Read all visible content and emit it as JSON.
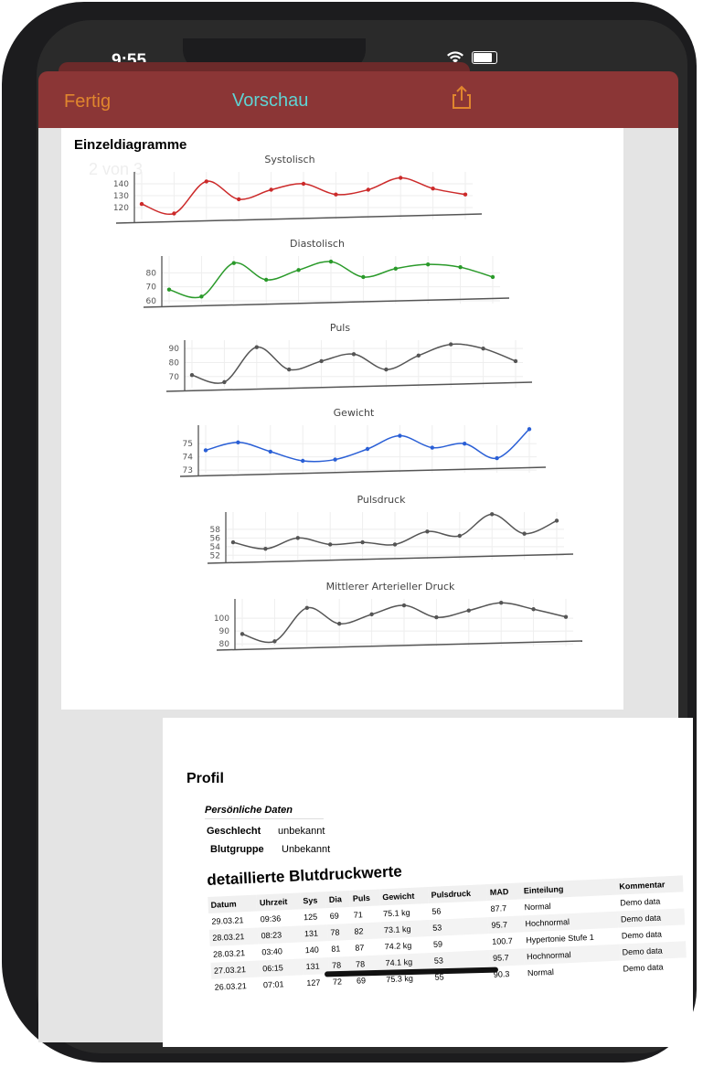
{
  "status_bar": {
    "time": "9:55",
    "wifi_icon": "wifi-icon",
    "battery_icon": "battery-icon"
  },
  "navbar": {
    "done_label": "Fertig",
    "title": "Vorschau",
    "share_icon": "share-icon",
    "colors": {
      "bar": "#8b3636",
      "done": "#e0862e",
      "title": "#5fd3d3"
    }
  },
  "page1": {
    "section_title": "Einzeldiagramme",
    "page_indicator": "2 von 3"
  },
  "chart_data": [
    {
      "type": "line",
      "title": "Systolisch",
      "color": "#cc2a2a",
      "yticks": [
        "120",
        "130",
        "140"
      ],
      "ylim": [
        110,
        150
      ],
      "values": [
        123,
        115,
        142,
        127,
        135,
        140,
        131,
        135,
        145,
        136,
        131
      ]
    },
    {
      "type": "line",
      "title": "Diastolisch",
      "color": "#2a9a2a",
      "yticks": [
        "60",
        "70",
        "80"
      ],
      "ylim": [
        58,
        92
      ],
      "values": [
        68,
        63,
        87,
        75,
        82,
        88,
        77,
        83,
        86,
        84,
        77
      ]
    },
    {
      "type": "line",
      "title": "Puls",
      "color": "#555555",
      "yticks": [
        "70",
        "80",
        "90"
      ],
      "ylim": [
        62,
        96
      ],
      "values": [
        71,
        66,
        91,
        75,
        81,
        86,
        75,
        85,
        93,
        90,
        81
      ]
    },
    {
      "type": "line",
      "title": "Gewicht",
      "color": "#2a5fd6",
      "yticks": [
        "73",
        "74",
        "75"
      ],
      "ylim": [
        72.8,
        76.4
      ],
      "values": [
        74.5,
        75.1,
        74.4,
        73.7,
        73.8,
        74.6,
        75.6,
        74.7,
        75.0,
        73.9,
        76.1
      ]
    },
    {
      "type": "line",
      "title": "Pulsdruck",
      "color": "#555555",
      "yticks": [
        "52",
        "54",
        "56",
        "58"
      ],
      "ylim": [
        51,
        62
      ],
      "values": [
        55,
        53.5,
        56,
        54.5,
        55,
        54.5,
        57.5,
        56.5,
        61.5,
        57,
        60
      ]
    },
    {
      "type": "line",
      "title": "Mittlerer Arterieller Druck",
      "color": "#555555",
      "yticks": [
        "80",
        "90",
        "100"
      ],
      "ylim": [
        78,
        115
      ],
      "values": [
        87.7,
        82,
        108,
        95.7,
        103,
        110,
        100.7,
        106,
        112,
        107,
        101
      ]
    }
  ],
  "page2": {
    "profile_title": "Profil",
    "personal_title": "Persönliche Daten",
    "fields": [
      {
        "label": "Geschlecht",
        "value": "unbekannt"
      },
      {
        "label": "Blutgruppe",
        "value": "Unbekannt"
      }
    ],
    "table_title": "detaillierte Blutdruckwerte",
    "columns": [
      "Datum",
      "Uhrzeit",
      "Sys",
      "Dia",
      "Puls",
      "Gewicht",
      "Pulsdruck",
      "MAD",
      "Einteilung",
      "Kommentar"
    ],
    "rows": [
      [
        "29.03.21",
        "09:36",
        "125",
        "69",
        "71",
        "75.1 kg",
        "56",
        "87.7",
        "Normal",
        "Demo data"
      ],
      [
        "28.03.21",
        "08:23",
        "131",
        "78",
        "82",
        "73.1 kg",
        "53",
        "95.7",
        "Hochnormal",
        "Demo data"
      ],
      [
        "28.03.21",
        "03:40",
        "140",
        "81",
        "87",
        "74.2 kg",
        "59",
        "100.7",
        "Hypertonie Stufe 1",
        "Demo data"
      ],
      [
        "27.03.21",
        "06:15",
        "131",
        "78",
        "78",
        "74.1 kg",
        "53",
        "95.7",
        "Hochnormal",
        "Demo data"
      ],
      [
        "26.03.21",
        "07:01",
        "127",
        "72",
        "69",
        "75.3 kg",
        "55",
        "90.3",
        "Normal",
        "Demo data"
      ]
    ]
  }
}
